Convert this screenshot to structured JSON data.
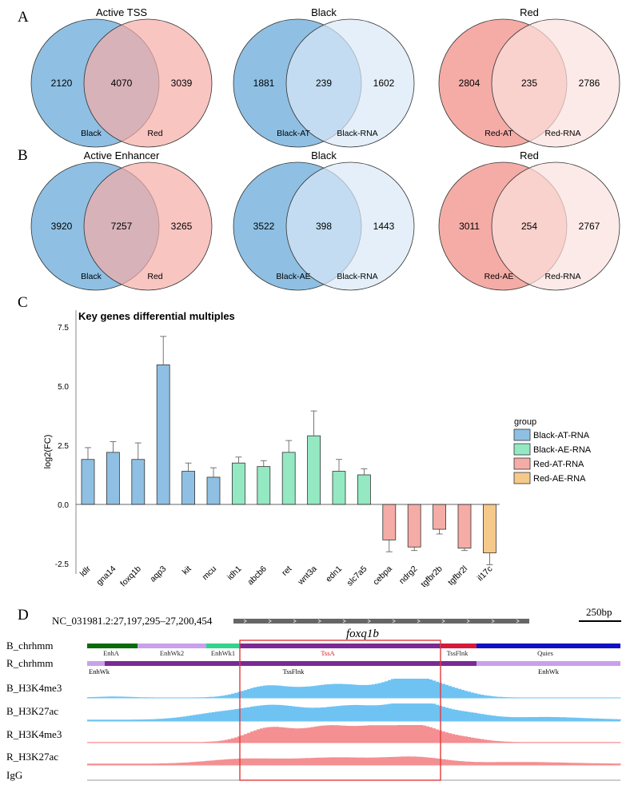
{
  "colors": {
    "blue": "#8fc0e3",
    "lightblue": "#d9e8f6",
    "red": "#f5aca6",
    "lightred": "#fbe1de",
    "green": "#94e8c2",
    "orange": "#f4c98a",
    "track_blue": "#6ec3f3",
    "track_red": "#f48f92",
    "box": "#e03a3a"
  },
  "panels": {
    "A": "A",
    "B": "B",
    "C": "C",
    "D": "D"
  },
  "venn_A": [
    {
      "title": "Active TSS",
      "left": "2120",
      "mid": "4070",
      "right": "3039",
      "label_left": "Black",
      "label_right": "Red",
      "style": "black-red"
    },
    {
      "title": "Black",
      "left": "1881",
      "mid": "239",
      "right": "1602",
      "label_left": "Black-AT",
      "label_right": "Black-RNA",
      "style": "blue"
    },
    {
      "title": "Red",
      "left": "2804",
      "mid": "235",
      "right": "2786",
      "label_left": "Red-AT",
      "label_right": "Red-RNA",
      "style": "red"
    }
  ],
  "venn_B": [
    {
      "title": "Active Enhancer",
      "left": "3920",
      "mid": "7257",
      "right": "3265",
      "label_left": "Black",
      "label_right": "Red",
      "style": "black-red"
    },
    {
      "title": "Black",
      "left": "3522",
      "mid": "398",
      "right": "1443",
      "label_left": "Black-AE",
      "label_right": "Black-RNA",
      "style": "blue"
    },
    {
      "title": "Red",
      "left": "3011",
      "mid": "254",
      "right": "2767",
      "label_left": "Red-AE",
      "label_right": "Red-RNA",
      "style": "red"
    }
  ],
  "chart_data": {
    "type": "bar",
    "title": "Key genes differential multiples",
    "ylabel": "log2(FC)",
    "xlabel": "",
    "ylim": [
      -2.8,
      8.0
    ],
    "yticks": [
      "7.5",
      "5.0",
      "2.5",
      "0.0",
      "-2.5"
    ],
    "ytick_values": [
      7.5,
      5.0,
      2.5,
      0.0,
      -2.5
    ],
    "categories": [
      "ldlr",
      "gna14",
      "foxq1b",
      "aqp3",
      "kit",
      "mcu",
      "idh1",
      "abcb6",
      "ret",
      "wnt3a",
      "edn1",
      "slc7a5",
      "cebpa",
      "ndrg2",
      "tgfbr2b",
      "tgfbr2l",
      "il17c"
    ],
    "values": [
      1.9,
      2.2,
      1.9,
      5.9,
      1.4,
      1.15,
      1.75,
      1.6,
      2.2,
      2.9,
      1.4,
      1.25,
      -1.5,
      -1.8,
      -1.05,
      -1.85,
      -2.05
    ],
    "errors": [
      0.5,
      0.45,
      0.7,
      1.2,
      0.35,
      0.4,
      0.25,
      0.25,
      0.5,
      1.05,
      0.5,
      0.25,
      0.5,
      0.15,
      0.2,
      0.1,
      0.5
    ],
    "groups": [
      "Black-AT-RNA",
      "Black-AT-RNA",
      "Black-AT-RNA",
      "Black-AT-RNA",
      "Black-AT-RNA",
      "Black-AT-RNA",
      "Black-AE-RNA",
      "Black-AE-RNA",
      "Black-AE-RNA",
      "Black-AE-RNA",
      "Black-AE-RNA",
      "Black-AE-RNA",
      "Red-AT-RNA",
      "Red-AT-RNA",
      "Red-AT-RNA",
      "Red-AT-RNA",
      "Red-AE-RNA"
    ],
    "legend": {
      "title": "group",
      "entries": [
        "Black-AT-RNA",
        "Black-AE-RNA",
        "Red-AT-RNA",
        "Red-AE-RNA"
      ]
    }
  },
  "browser": {
    "coordinate": "NC_031981.2:27,197,295–27,200,454",
    "scale": "250bp",
    "gene": "foxq1b",
    "tracks": [
      "B_chrhmm",
      "R_chrhmm",
      "B_H3K4me3",
      "B_H3K27ac",
      "R_H3K4me3",
      "R_H3K27ac",
      "IgG"
    ],
    "b_states": [
      "EnhA",
      "EnhWk2",
      "EnhWk1",
      "TssA",
      "TssFlnk",
      "Quies"
    ],
    "r_states": [
      "EnhWk",
      "TssFlnk",
      "EnhWk"
    ]
  }
}
